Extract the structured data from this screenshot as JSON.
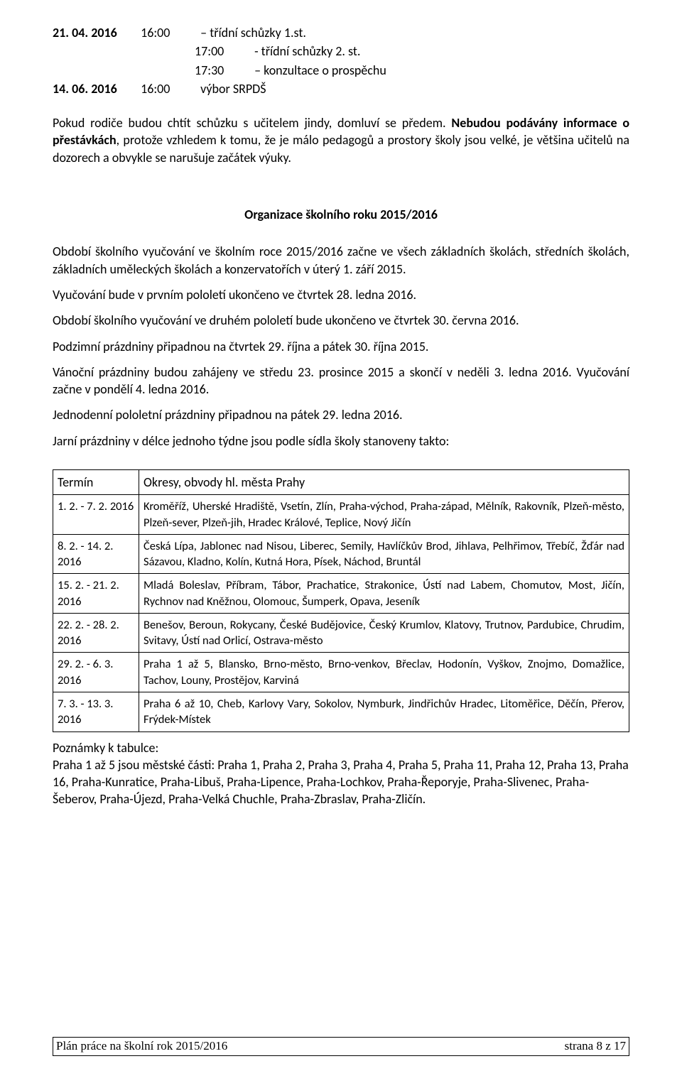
{
  "schedule": [
    {
      "date": "21. 04. 2016",
      "time": "16:00",
      "text": " – třídní schůzky 1.st."
    },
    {
      "time": "17:00",
      "text": " -  třídní schůzky 2. st."
    },
    {
      "time": "17:30",
      "text": " – konzultace o prospěchu"
    },
    {
      "date": "14. 06. 2016",
      "time": "16:00",
      "text": "   výbor SRPDŠ"
    }
  ],
  "intro_para_plain": "Pokud rodiče budou chtít schůzku s učitelem jindy, domluví se předem. ",
  "intro_bold1": "Nebudou podávány informace o přestávkách",
  "intro_rest": ", protože vzhledem k tomu, že je málo pedagogů a prostory školy jsou velké, je většina učitelů na dozorech a obvykle se narušuje začátek výuky.",
  "section_title": "Organizace školního roku 2015/2016",
  "body_paragraphs": [
    "   Období školního vyučování ve školním roce 2015/2016 začne ve všech základních školách, středních školách, základních uměleckých školách a konzervatořích v úterý 1. září 2015.",
    "Vyučování bude v prvním pololetí ukončeno ve čtvrtek 28. ledna 2016.",
    "Období školního vyučování ve druhém pololetí bude ukončeno ve čtvrtek 30. června 2016.",
    "Podzimní prázdniny připadnou na čtvrtek 29. října a pátek 30. října 2015.",
    "Vánoční prázdniny budou zahájeny ve středu 23. prosince 2015 a skončí v neděli 3. ledna 2016. Vyučování začne v pondělí 4. ledna 2016.",
    "Jednodenní pololetní prázdniny připadnou na pátek 29. ledna 2016.",
    "Jarní prázdniny v délce jednoho týdne jsou podle sídla školy stanoveny takto:"
  ],
  "table": {
    "header": [
      "Termín",
      "Okresy, obvody hl. města Prahy"
    ],
    "rows": [
      [
        "1. 2. - 7. 2. 2016",
        "Kroměříž, Uherské Hradiště, Vsetín, Zlín, Praha-východ, Praha-západ, Mělník, Rakovník, Plzeň-město, Plzeň-sever, Plzeň-jih, Hradec Králové,  Teplice, Nový Jičín"
      ],
      [
        "8. 2. - 14. 2. 2016",
        "Česká Lípa, Jablonec nad Nisou, Liberec, Semily, Havlíčkův Brod, Jihlava, Pelhřimov, Třebíč, Žďár nad Sázavou, Kladno, Kolín, Kutná Hora, Písek, Náchod, Bruntál"
      ],
      [
        "15. 2. - 21. 2. 2016",
        "Mladá Boleslav, Příbram, Tábor, Prachatice, Strakonice, Ústí nad Labem, Chomutov, Most, Jičín, Rychnov nad Kněžnou, Olomouc, Šumperk, Opava, Jeseník"
      ],
      [
        "22. 2. - 28. 2. 2016",
        "Benešov, Beroun, Rokycany, České Budějovice, Český Krumlov, Klatovy, Trutnov, Pardubice, Chrudim, Svitavy, Ústí nad Orlicí, Ostrava-město"
      ],
      [
        "29. 2. - 6. 3. 2016",
        "Praha 1 až 5, Blansko, Brno-město, Brno-venkov, Břeclav, Hodonín, Vyškov, Znojmo, Domažlice, Tachov, Louny, Prostějov, Karviná"
      ],
      [
        "7. 3. - 13. 3. 2016",
        "Praha 6 až 10, Cheb, Karlovy Vary, Sokolov, Nymburk, Jindřichův Hradec, Litoměřice, Děčín, Přerov, Frýdek-Místek"
      ]
    ]
  },
  "notes_title": "Poznámky k tabulce:",
  "notes_body": "Praha 1 až 5 jsou městské části: Praha 1,  Praha 2,  Praha 3,  Praha 4,  Praha 5,  Praha 11,  Praha 12, Praha 13, Praha 16, Praha-Kunratice, Praha-Libuš, Praha-Lipence, Praha-Lochkov, Praha-Řeporyje, Praha-Slivenec, Praha-Šeberov, Praha-Újezd, Praha-Velká Chuchle, Praha-Zbraslav, Praha-Zličín.",
  "footer_left": "Plán práce na školní rok 2015/2016",
  "footer_right": "strana  8 z 17"
}
